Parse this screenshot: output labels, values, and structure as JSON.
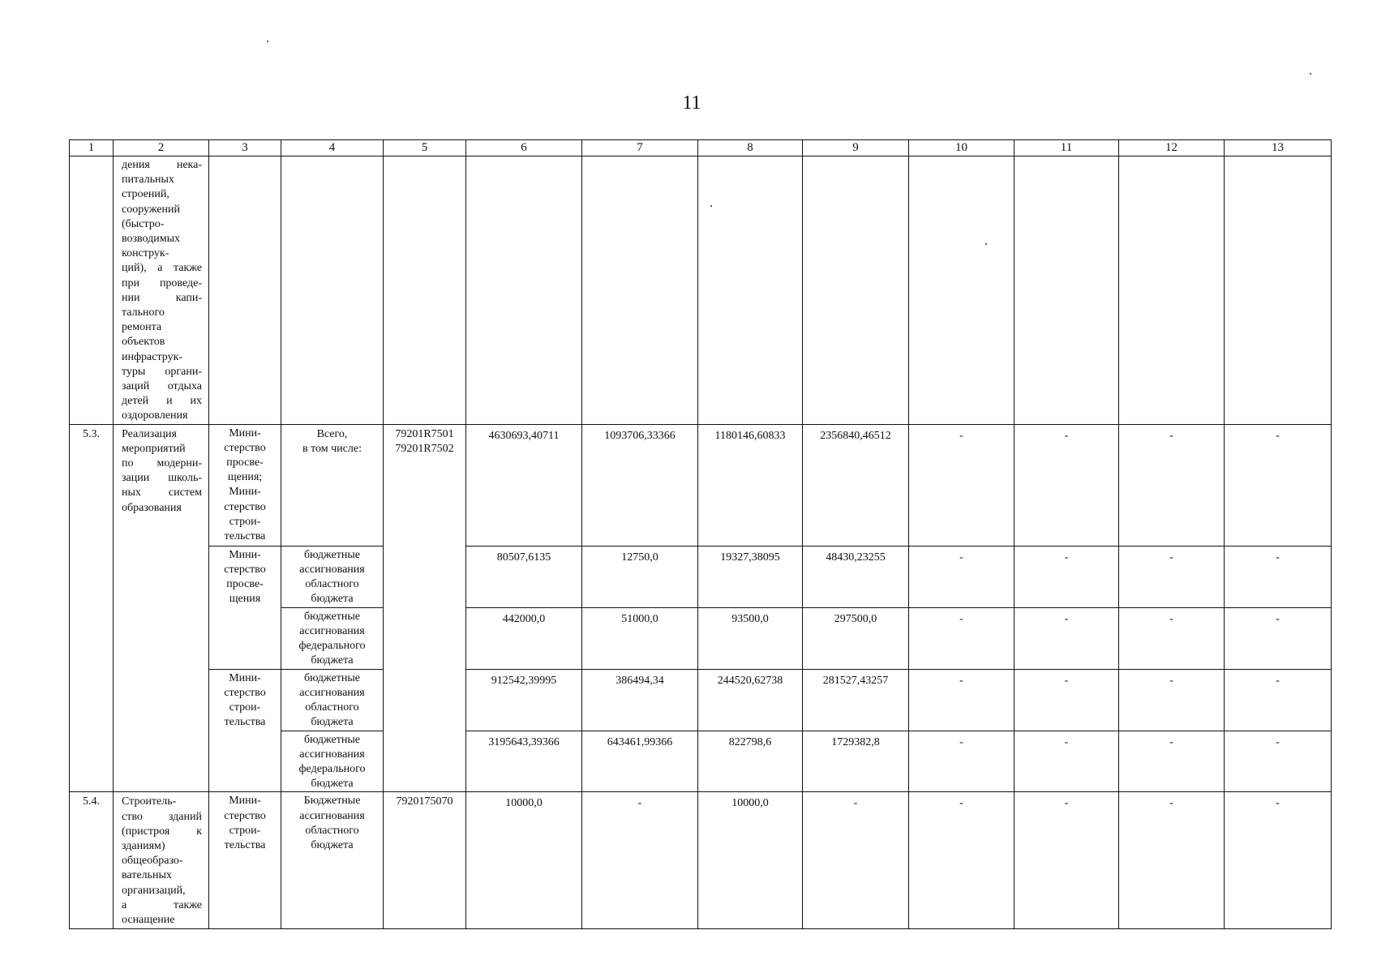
{
  "page_number": "11",
  "header": [
    "1",
    "2",
    "3",
    "4",
    "5",
    "6",
    "7",
    "8",
    "9",
    "10",
    "11",
    "12",
    "13"
  ],
  "continuation_row": {
    "col2_lines": [
      "дения    нека-",
      "питальных",
      "строений,",
      "сооружений",
      "(быстро-",
      "возводимых",
      "конструк-",
      "ций), а также",
      "при проведе-",
      "нии       капи-",
      "тального",
      "ремонта",
      "объектов",
      "инфраструк-",
      "туры органи-",
      "заций отдыха",
      "детей    и    их",
      "оздоровления"
    ]
  },
  "item_5_3": {
    "number": "5.3.",
    "name_lines": [
      "Реализация",
      "мероприятий",
      "по   модерни-",
      "зации  школь-",
      "ных    систем",
      "образования"
    ],
    "executor_all": "Мини-\nстерство\nпросве-\nщения;\nМини-\nстерство\nстрои-\nтельства",
    "source_all": "Всего,\nв том числе:",
    "codes": "79201R7501\n79201R7502",
    "total": [
      "4630693,40711",
      "1093706,33366",
      "1180146,60833",
      "2356840,46512",
      "-",
      "-",
      "-",
      "-"
    ],
    "executor_education": "Мини-\nстерство\nпросве-\nщения",
    "executor_construction": "Мини-\nстерство\nстрои-\nтельства",
    "rows": [
      {
        "source": "бюджетные\nассигнования\nобластного\nбюджета",
        "values": [
          "80507,6135",
          "12750,0",
          "19327,38095",
          "48430,23255",
          "-",
          "-",
          "-",
          "-"
        ]
      },
      {
        "source": "бюджетные\nассигнования\nфедерального\nбюджета",
        "values": [
          "442000,0",
          "51000,0",
          "93500,0",
          "297500,0",
          "-",
          "-",
          "-",
          "-"
        ]
      },
      {
        "source": "бюджетные\nассигнования\nобластного\nбюджета",
        "values": [
          "912542,39995",
          "386494,34",
          "244520,62738",
          "281527,43257",
          "-",
          "-",
          "-",
          "-"
        ]
      },
      {
        "source": "бюджетные\nассигнования\nфедерального\nбюджета",
        "values": [
          "3195643,39366",
          "643461,99366",
          "822798,6",
          "1729382,8",
          "-",
          "-",
          "-",
          "-"
        ]
      }
    ]
  },
  "item_5_4": {
    "number": "5.4.",
    "name_lines": [
      "Строитель-",
      "ство   зданий",
      "(пристроя   к",
      "зданиям)",
      "общеобразо-",
      "вательных",
      "организаций,",
      "а           также",
      "оснащение"
    ],
    "executor": "Мини-\nстерство\nстрои-\nтельства",
    "source": "Бюджетные\nассигнования\nобластного\nбюджета",
    "code": "7920175070",
    "values": [
      "10000,0",
      "-",
      "10000,0",
      "-",
      "-",
      "-",
      "-",
      "-"
    ]
  }
}
